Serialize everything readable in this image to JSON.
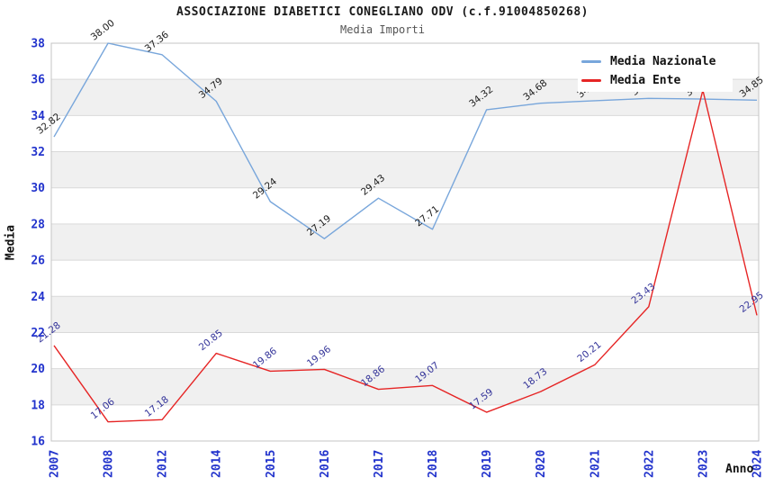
{
  "chart": {
    "title": "ASSOCIAZIONE DIABETICI CONEGLIANO ODV (c.f.91004850268)",
    "subtitle": "Media Importi",
    "xlabel": "Anno",
    "ylabel": "Media"
  },
  "chart_data": {
    "type": "line",
    "categories": [
      "2007",
      "2008",
      "2012",
      "2014",
      "2015",
      "2016",
      "2017",
      "2018",
      "2019",
      "2020",
      "2021",
      "2022",
      "2023",
      "2024"
    ],
    "series": [
      {
        "name": "Media Nazionale",
        "color": "#78a6db",
        "label_color": "#1c1c1c",
        "values": [
          32.82,
          38.0,
          37.36,
          34.79,
          29.24,
          27.19,
          29.43,
          27.71,
          34.32,
          34.68,
          34.82,
          34.95,
          34.91,
          34.85
        ]
      },
      {
        "name": "Media Ente",
        "color": "#e62525",
        "label_color": "#333399",
        "values": [
          21.28,
          17.06,
          17.18,
          20.85,
          19.86,
          19.96,
          18.86,
          19.07,
          17.59,
          18.73,
          20.21,
          23.43,
          35.4,
          22.95
        ]
      }
    ],
    "title": "Media Importi",
    "xlabel": "Anno",
    "ylabel": "Media",
    "ylim": [
      16,
      38
    ],
    "yticks": [
      16,
      18,
      20,
      22,
      24,
      26,
      28,
      30,
      32,
      34,
      36,
      38
    ],
    "grid": true,
    "band_fill_values": [
      36,
      32,
      28,
      24,
      20
    ],
    "legend_position": "top-right"
  },
  "colors": {
    "tick_label": "#2233cc",
    "band": "#f0f0f0",
    "gridline": "#d9d9d9",
    "border": "#c4c4c4",
    "legend_text": "#111111"
  }
}
